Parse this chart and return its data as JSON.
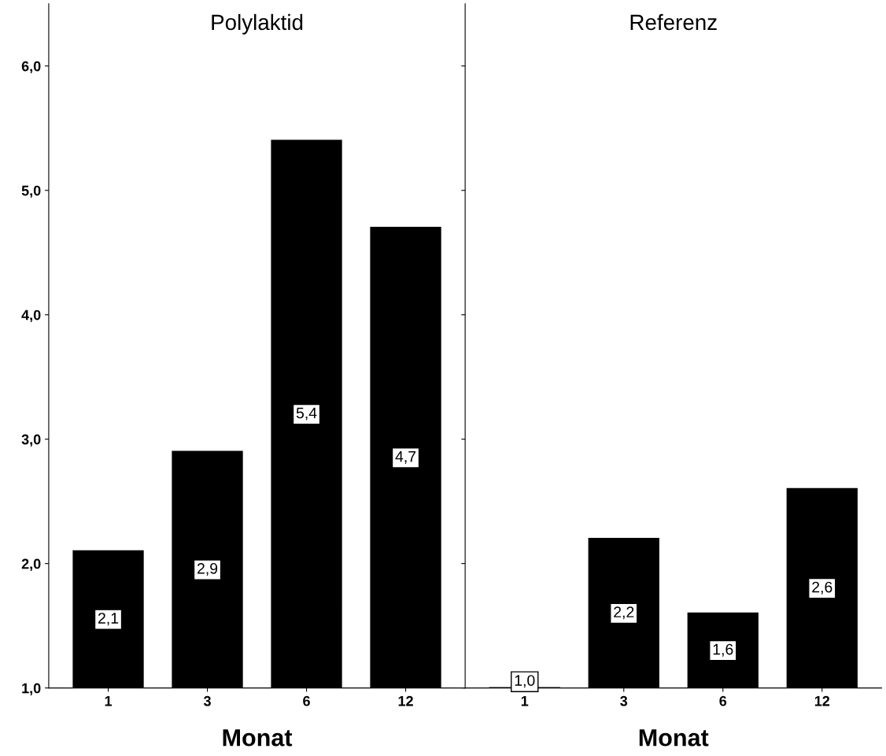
{
  "chart_data": [
    {
      "type": "bar",
      "title": "Polylaktid",
      "xlabel": "Monat",
      "categories": [
        "1",
        "3",
        "6",
        "12"
      ],
      "values": [
        2.1,
        2.9,
        5.4,
        4.7
      ],
      "value_labels": [
        "2,1",
        "2,9",
        "5,4",
        "4,7"
      ],
      "color": "#000000",
      "ylim": [
        1.0,
        6.5
      ],
      "yticks": [
        {
          "value": 1,
          "label": "1,0"
        },
        {
          "value": 2,
          "label": "2,0"
        },
        {
          "value": 3,
          "label": "3,0"
        },
        {
          "value": 4,
          "label": "4,0"
        },
        {
          "value": 5,
          "label": "5,0"
        },
        {
          "value": 6,
          "label": "6,0"
        }
      ],
      "grid": false,
      "legend": false
    },
    {
      "type": "bar",
      "title": "Referenz",
      "xlabel": "Monat",
      "categories": [
        "1",
        "3",
        "6",
        "12"
      ],
      "values": [
        1.0,
        2.2,
        1.6,
        2.6
      ],
      "value_labels": [
        "1,0",
        "2,2",
        "1,6",
        "2,6"
      ],
      "color": "#000000",
      "ylim": [
        1.0,
        6.5
      ],
      "yticks": [
        {
          "value": 1,
          "label": null
        },
        {
          "value": 2,
          "label": null
        },
        {
          "value": 3,
          "label": null
        },
        {
          "value": 4,
          "label": null
        },
        {
          "value": 5,
          "label": null
        },
        {
          "value": 6,
          "label": null
        }
      ],
      "tick_labels": "x",
      "grid": false,
      "legend": false
    }
  ]
}
